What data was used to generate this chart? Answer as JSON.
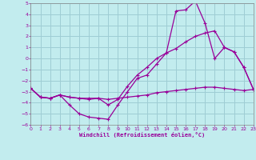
{
  "xlabel": "Windchill (Refroidissement éolien,°C)",
  "background_color": "#c2ecee",
  "grid_color": "#9ecdd4",
  "line_color": "#990099",
  "xlim": [
    0,
    23
  ],
  "ylim": [
    -6,
    5
  ],
  "xticks": [
    0,
    1,
    2,
    3,
    4,
    5,
    6,
    7,
    8,
    9,
    10,
    11,
    12,
    13,
    14,
    15,
    16,
    17,
    18,
    19,
    20,
    21,
    22,
    23
  ],
  "yticks": [
    -6,
    -5,
    -4,
    -3,
    -2,
    -1,
    0,
    1,
    2,
    3,
    4,
    5
  ],
  "curve1_x": [
    0,
    1,
    2,
    3,
    4,
    5,
    6,
    7,
    8,
    9,
    10,
    11,
    12,
    13,
    14,
    15,
    16,
    17,
    18,
    19,
    20,
    21,
    22,
    23
  ],
  "curve1_y": [
    -2.7,
    -3.5,
    -3.6,
    -3.3,
    -4.2,
    -5.0,
    -5.3,
    -5.4,
    -5.5,
    -4.2,
    -3.0,
    -1.8,
    -1.5,
    -0.5,
    0.5,
    4.3,
    4.4,
    5.2,
    3.2,
    0.0,
    1.0,
    0.6,
    -0.8,
    -2.8
  ],
  "curve2_x": [
    0,
    1,
    2,
    3,
    4,
    5,
    6,
    7,
    8,
    9,
    10,
    11,
    12,
    13,
    14,
    15,
    16,
    17,
    18,
    19,
    20,
    21,
    22,
    23
  ],
  "curve2_y": [
    -2.7,
    -3.5,
    -3.6,
    -3.3,
    -3.5,
    -3.6,
    -3.6,
    -3.6,
    -3.7,
    -3.6,
    -3.5,
    -3.4,
    -3.3,
    -3.1,
    -3.0,
    -2.9,
    -2.8,
    -2.7,
    -2.6,
    -2.6,
    -2.7,
    -2.8,
    -2.9,
    -2.8
  ],
  "curve3_x": [
    0,
    1,
    2,
    3,
    4,
    5,
    6,
    7,
    8,
    9,
    10,
    11,
    12,
    13,
    14,
    15,
    16,
    17,
    18,
    19,
    20,
    21,
    22,
    23
  ],
  "curve3_y": [
    -2.7,
    -3.5,
    -3.6,
    -3.3,
    -3.5,
    -3.6,
    -3.7,
    -3.6,
    -4.2,
    -3.7,
    -2.5,
    -1.5,
    -0.8,
    0.0,
    0.5,
    0.9,
    1.5,
    2.0,
    2.3,
    2.5,
    1.0,
    0.6,
    -0.8,
    -2.8
  ]
}
